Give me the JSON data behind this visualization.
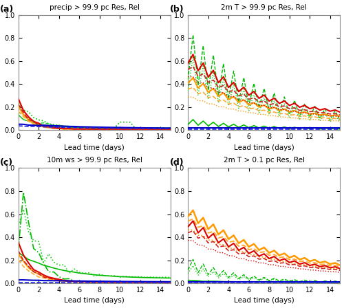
{
  "titles": [
    "precip > 99.9 pc Res, Rel",
    "2m T > 99.9 pc Res, Rel",
    "10m ws > 99.9 pc Res, Rel",
    "2m T > 0.1 pc Res, Rel"
  ],
  "panel_labels": [
    "(a)",
    "(b)",
    "(c)",
    "(d)"
  ],
  "xlabel": "Lead time (days)",
  "xlim": [
    0,
    15
  ],
  "ylim": [
    0,
    1.0
  ],
  "yticks": [
    0.0,
    0.2,
    0.4,
    0.6,
    0.8,
    1.0
  ],
  "xticks": [
    0,
    2,
    4,
    6,
    8,
    10,
    12,
    14
  ],
  "background_color": "#ffffff",
  "colors": {
    "red": "#dd0000",
    "red2": "#cc2222",
    "orange": "#ff9900",
    "orange2": "#ffaa33",
    "green": "#00bb00",
    "green2": "#22cc22",
    "blue": "#0000cc",
    "blue2": "#2222dd"
  }
}
